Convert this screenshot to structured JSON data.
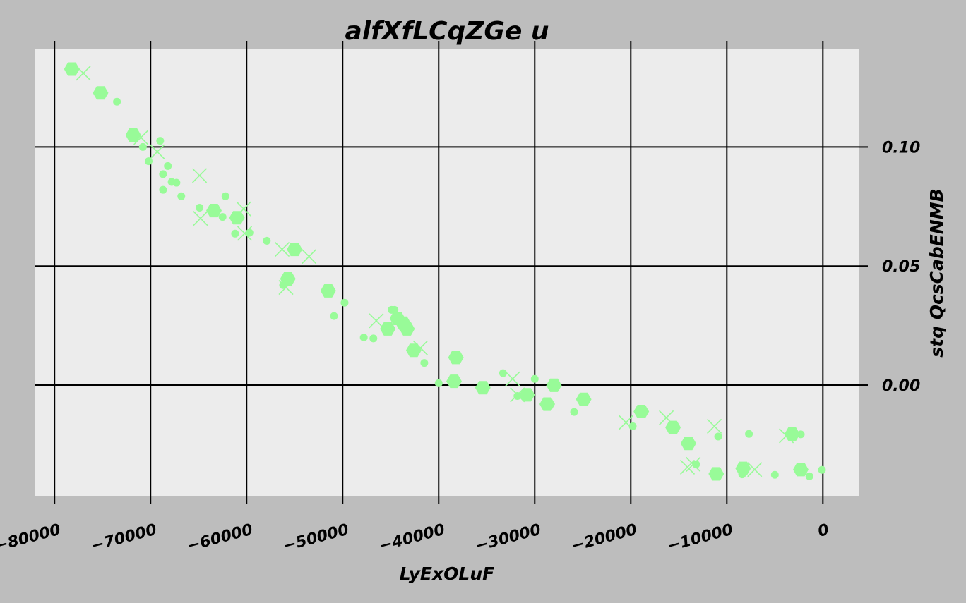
{
  "chart_data": {
    "type": "scatter",
    "title": "alfXfLCqZGe u",
    "xlabel": "LyExOLuF",
    "ylabel": "stq QcsCabENMB",
    "xlim": [
      -82000,
      3800
    ],
    "ylim": [
      -0.0465,
      0.141
    ],
    "x_ticks": [
      -80000,
      -70000,
      -60000,
      -50000,
      -40000,
      -30000,
      -20000,
      -10000,
      0
    ],
    "x_tick_labels": [
      "−80000",
      "−70000",
      "−60000",
      "−50000",
      "−40000",
      "−30000",
      "−20000",
      "−10000",
      "0"
    ],
    "y_ticks": [
      0.0,
      0.05,
      0.1
    ],
    "y_tick_labels": [
      "0.00",
      "0.05",
      "0.10"
    ],
    "y_axis_position": "right",
    "grid": true,
    "legend": "none",
    "colors": {
      "background": "#bdbdbd",
      "plot_area": "#ececec",
      "marker": "#98fb98",
      "grid": "#000000"
    },
    "series": [
      {
        "marker": "hexagon",
        "points": [
          [
            -78200,
            0.1327
          ],
          [
            -75200,
            0.1227
          ],
          [
            -71800,
            0.105
          ],
          [
            -63400,
            0.0733
          ],
          [
            -61000,
            0.0703
          ],
          [
            -55700,
            0.0446
          ],
          [
            -55000,
            0.057
          ],
          [
            -51500,
            0.0396
          ],
          [
            -45300,
            0.0236
          ],
          [
            -44300,
            0.028
          ],
          [
            -43700,
            0.026
          ],
          [
            -43300,
            0.0236
          ],
          [
            -42600,
            0.0146
          ],
          [
            -38200,
            0.0116
          ],
          [
            -38400,
            0.0016
          ],
          [
            -35400,
            -0.0011
          ],
          [
            -30800,
            -0.0041
          ],
          [
            -28700,
            -0.008
          ],
          [
            -28000,
            -0.0001
          ],
          [
            -24900,
            -0.006
          ],
          [
            -18900,
            -0.0111
          ],
          [
            -15600,
            -0.0178
          ],
          [
            -14000,
            -0.0245
          ],
          [
            -11100,
            -0.0373
          ],
          [
            -8300,
            -0.035
          ],
          [
            -3200,
            -0.0206
          ],
          [
            -2300,
            -0.0355
          ]
        ]
      },
      {
        "marker": "dot",
        "points": [
          [
            -73500,
            0.119
          ],
          [
            -69000,
            0.1026
          ],
          [
            -70800,
            0.1
          ],
          [
            -70200,
            0.094
          ],
          [
            -68200,
            0.092
          ],
          [
            -68700,
            0.0886
          ],
          [
            -67800,
            0.0853
          ],
          [
            -67300,
            0.085
          ],
          [
            -68700,
            0.082
          ],
          [
            -66800,
            0.0793
          ],
          [
            -62200,
            0.0793
          ],
          [
            -64900,
            0.0745
          ],
          [
            -62500,
            0.0706
          ],
          [
            -61200,
            0.0636
          ],
          [
            -59700,
            0.064
          ],
          [
            -57900,
            0.0606
          ],
          [
            -56200,
            0.042
          ],
          [
            -49800,
            0.0346
          ],
          [
            -44900,
            0.0316
          ],
          [
            -44600,
            0.0316
          ],
          [
            -50900,
            0.029
          ],
          [
            -47800,
            0.02
          ],
          [
            -46800,
            0.0196
          ],
          [
            -41500,
            0.0093
          ],
          [
            -33300,
            0.005
          ],
          [
            -40000,
            0.0008
          ],
          [
            -30000,
            0.0026
          ],
          [
            -31800,
            -0.0046
          ],
          [
            -25900,
            -0.0113
          ],
          [
            -19800,
            -0.0173
          ],
          [
            -10900,
            -0.0216
          ],
          [
            -7700,
            -0.0205
          ],
          [
            -2300,
            -0.0207
          ],
          [
            -13200,
            -0.0333
          ],
          [
            -8400,
            -0.0375
          ],
          [
            -5000,
            -0.0377
          ],
          [
            -1400,
            -0.0383
          ],
          [
            -100,
            -0.0356
          ]
        ]
      },
      {
        "marker": "x",
        "points": [
          [
            -77000,
            0.131
          ],
          [
            -71000,
            0.104
          ],
          [
            -69300,
            0.098
          ],
          [
            -64900,
            0.088
          ],
          [
            -64800,
            0.07
          ],
          [
            -60300,
            0.074
          ],
          [
            -60200,
            0.0637
          ],
          [
            -56300,
            0.057
          ],
          [
            -53500,
            0.054
          ],
          [
            -55900,
            0.041
          ],
          [
            -46500,
            0.027
          ],
          [
            -41900,
            0.0156
          ],
          [
            -32300,
            0.0026
          ],
          [
            -31800,
            -0.0041
          ],
          [
            -20500,
            -0.0157
          ],
          [
            -16300,
            -0.0137
          ],
          [
            -11300,
            -0.0173
          ],
          [
            -13500,
            -0.0333
          ],
          [
            -14100,
            -0.0345
          ],
          [
            -7100,
            -0.0355
          ],
          [
            -3800,
            -0.0213
          ]
        ]
      }
    ]
  }
}
